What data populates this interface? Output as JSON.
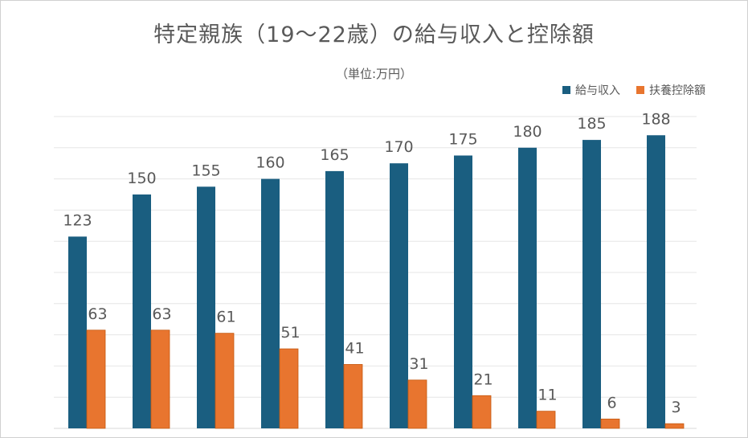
{
  "chart_data": {
    "type": "bar",
    "title": "特定親族（19～22歳）の給与収入と控除額",
    "subtitle": "（単位:万円）",
    "legend_position": "top-right",
    "grid": true,
    "ylim": [
      0,
      200
    ],
    "categories": [
      "",
      "",
      "",
      "",
      "",
      "",
      "",
      "",
      "",
      ""
    ],
    "series": [
      {
        "name": "給与収入",
        "color": "#1a5e80",
        "values": [
          123,
          150,
          155,
          160,
          165,
          170,
          175,
          180,
          185,
          188
        ]
      },
      {
        "name": "扶養控除額",
        "color": "#e8752f",
        "values": [
          63,
          63,
          61,
          51,
          41,
          31,
          21,
          11,
          6,
          3
        ]
      }
    ]
  }
}
